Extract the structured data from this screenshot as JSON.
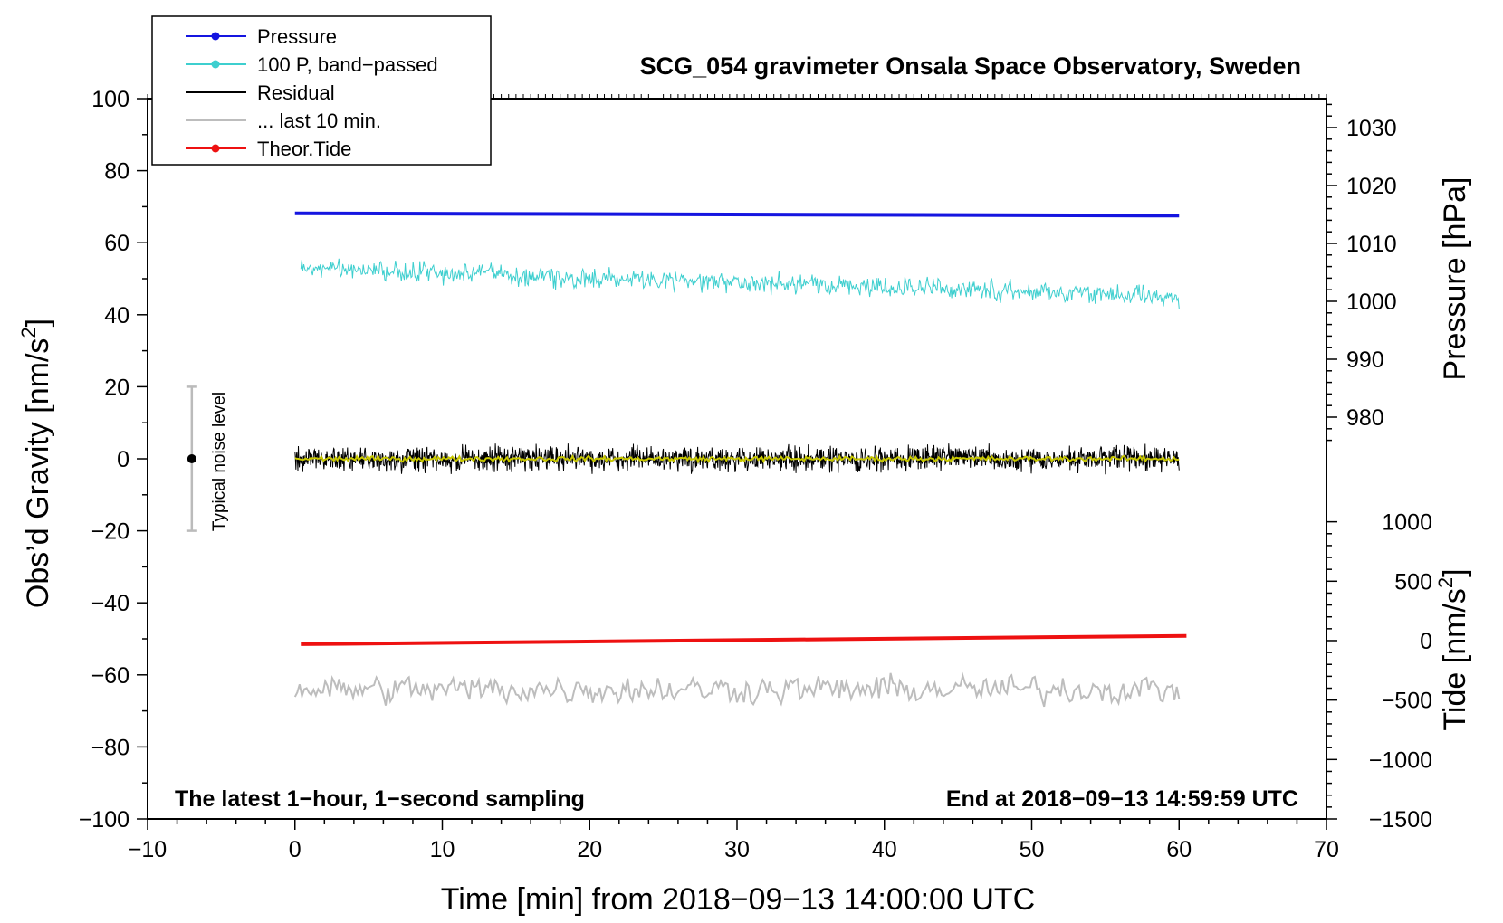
{
  "chart_data": {
    "type": "line",
    "title": "SCG_054 gravimeter Onsala Space Observatory, Sweden",
    "xlabel": "Time [min] from 2018−09−13 14:00:00 UTC",
    "ylabel": "Obs’d Gravity [nm/s",
    "ylabel_sup": "2",
    "ylabel_end": "]",
    "ylabel_right_top": "Pressure [hPa]",
    "ylabel_right_bottom": "Tide [nm/s",
    "ylabel_right_bottom_sup": "2",
    "ylabel_right_bottom_end": "]",
    "xlim": [
      -10,
      70
    ],
    "ylim": [
      -100,
      100
    ],
    "pressure_axis_range": [
      975,
      1035
    ],
    "tide_axis_range": [
      -1500,
      1100
    ],
    "x_ticks": [
      "−10",
      "0",
      "10",
      "20",
      "30",
      "40",
      "50",
      "60",
      "70"
    ],
    "x_tick_values": [
      -10,
      0,
      10,
      20,
      30,
      40,
      50,
      60,
      70
    ],
    "y_ticks": [
      "100",
      "80",
      "60",
      "40",
      "20",
      "0",
      "−20",
      "−40",
      "−60",
      "−80",
      "−100"
    ],
    "y_tick_values": [
      100,
      80,
      60,
      40,
      20,
      0,
      -20,
      -40,
      -60,
      -80,
      -100
    ],
    "pressure_ticks": [
      "1030",
      "1020",
      "1010",
      "1000",
      "990",
      "980"
    ],
    "pressure_tick_values": [
      1030,
      1020,
      1010,
      1000,
      990,
      980
    ],
    "tide_ticks": [
      "1000",
      "500",
      "0",
      "−500",
      "−1000",
      "−1500"
    ],
    "tide_tick_values": [
      1000,
      500,
      0,
      -500,
      -1000,
      -1500
    ],
    "legend": [
      {
        "label": "Pressure",
        "color": "#1515e0",
        "marker": true
      },
      {
        "label": "100 P, band−passed",
        "color": "#3ecfcf",
        "marker": true
      },
      {
        "label": "Residual",
        "color": "#000000",
        "marker": false
      },
      {
        "label": "... last 10 min.",
        "color": "#bdbdbd",
        "marker": false
      },
      {
        "label": "Theor.Tide",
        "color": "#ee1111",
        "marker": true
      }
    ],
    "legend_position": "top-left",
    "annotation_left": "The latest 1−hour, 1−second sampling",
    "annotation_right": "End at 2018−09−13 14:59:59 UTC",
    "noise_label": "Typical noise level",
    "noise_bar": {
      "x": -7,
      "center": 0,
      "low": -20,
      "high": 20
    },
    "series": [
      {
        "name": "Pressure",
        "axis": "pressure_hPa",
        "color": "#1515e0",
        "x": [
          0,
          60
        ],
        "values": [
          1015.2,
          1014.8
        ]
      },
      {
        "name": "100 P, band−passed",
        "axis": "gravity",
        "color": "#3ecfcf",
        "x": [
          0,
          60
        ],
        "values": [
          53,
          45
        ],
        "noise_amplitude": 5
      },
      {
        "name": "Residual",
        "axis": "gravity",
        "color": "#000000",
        "x": [
          0,
          60
        ],
        "values": [
          0,
          0
        ],
        "noise_amplitude": 5
      },
      {
        "name": "Residual smoothed",
        "axis": "gravity",
        "color": "#c8c800",
        "x": [
          0,
          60
        ],
        "values": [
          0,
          0
        ],
        "noise_amplitude": 1
      },
      {
        "name": "... last 10 min.",
        "axis": "gravity",
        "color": "#bdbdbd",
        "x": [
          0,
          60
        ],
        "values": [
          -64,
          -64
        ],
        "noise_amplitude": 5
      },
      {
        "name": "Theor.Tide",
        "axis": "tide",
        "color": "#ee1111",
        "x": [
          0,
          60.5
        ],
        "values": [
          -30,
          40
        ]
      }
    ]
  }
}
